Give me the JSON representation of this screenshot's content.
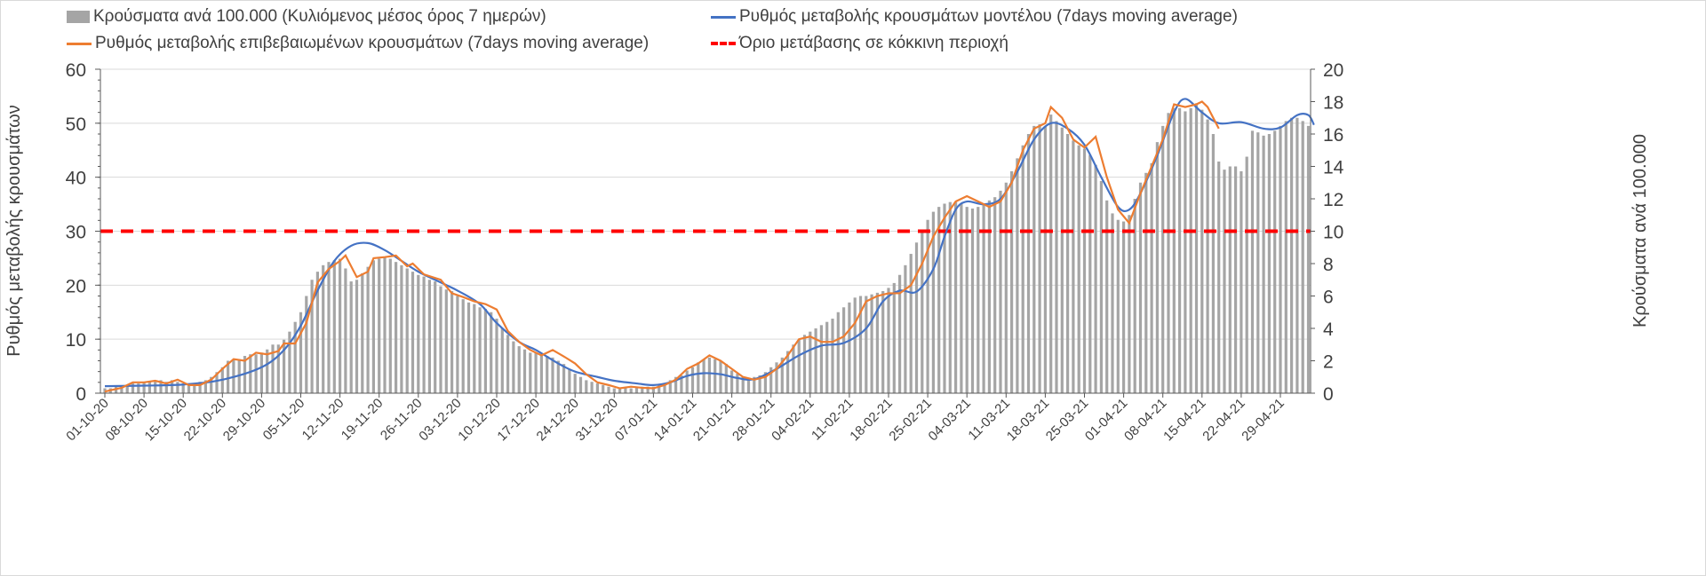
{
  "chart_data": {
    "type": "bar+line",
    "legend": {
      "bars": "Κρούσματα ανά 100.000 (Κυλιόμενος μέσος όρος 7 ημερών)",
      "model": "Ρυθμός μεταβολής κρουσμάτων μοντέλου (7days moving average)",
      "confirmed": "Ρυθμός μεταβολής επιβεβαιωμένων κρουσμάτων (7days moving average)",
      "threshold": "Όριο μετάβασης σε κόκκινη περιοχή"
    },
    "ylabel_left": "Ρυθμός μεταβολής κρουσμάτων",
    "ylabel_right": "Κρούσματα ανά 100.000",
    "ylim_left": [
      0,
      60
    ],
    "ylim_right": [
      0,
      20
    ],
    "yticks_left": [
      "0",
      "10",
      "20",
      "30",
      "40",
      "50",
      "60"
    ],
    "yticks_right": [
      "0",
      "2",
      "4",
      "6",
      "8",
      "10",
      "12",
      "14",
      "16",
      "18",
      "20"
    ],
    "x_start_date": "01-10-20",
    "x_ticks": [
      "01-10-20",
      "08-10-20",
      "15-10-20",
      "22-10-20",
      "29-10-20",
      "05-11-20",
      "12-11-20",
      "19-11-20",
      "26-11-20",
      "03-12-20",
      "10-12-20",
      "17-12-20",
      "24-12-20",
      "31-12-20",
      "07-01-21",
      "14-01-21",
      "21-01-21",
      "28-01-21",
      "04-02-21",
      "11-02-21",
      "18-02-21",
      "25-02-21",
      "04-03-21",
      "11-03-21",
      "18-03-21",
      "25-03-21",
      "01-04-21",
      "08-04-21",
      "15-04-21",
      "22-04-21",
      "29-04-21"
    ],
    "threshold_left": 30,
    "grid": "horizontal",
    "legend_position": "top",
    "colors": {
      "bars": "#a5a5a5",
      "model": "#4472c4",
      "confirmed": "#ed7d31",
      "threshold": "#ff0000"
    },
    "bars_daily_right_axis": [
      0.3,
      0.3,
      0.4,
      0.4,
      0.5,
      0.6,
      0.6,
      0.7,
      0.7,
      0.7,
      0.8,
      0.7,
      0.8,
      0.7,
      0.6,
      0.6,
      0.6,
      0.7,
      0.8,
      1.0,
      1.3,
      1.6,
      2.0,
      2.1,
      2.1,
      2.3,
      2.4,
      2.4,
      2.5,
      2.7,
      3.0,
      3.0,
      3.3,
      3.8,
      4.4,
      5.0,
      6.0,
      7.0,
      7.5,
      7.9,
      8.1,
      8.2,
      8.3,
      7.7,
      6.9,
      7.0,
      7.4,
      7.8,
      8.2,
      8.3,
      8.4,
      8.3,
      8.1,
      7.9,
      7.7,
      7.5,
      7.3,
      7.2,
      7.0,
      6.9,
      6.6,
      6.4,
      6.3,
      6.0,
      5.8,
      5.6,
      5.5,
      5.3,
      5.2,
      5.0,
      4.6,
      4.0,
      3.6,
      3.2,
      2.9,
      2.7,
      2.5,
      2.5,
      2.4,
      2.3,
      2.2,
      2.0,
      1.8,
      1.5,
      1.2,
      1.0,
      0.8,
      0.7,
      0.6,
      0.5,
      0.4,
      0.3,
      0.3,
      0.3,
      0.3,
      0.4,
      0.4,
      0.4,
      0.4,
      0.5,
      0.6,
      0.8,
      1.0,
      1.1,
      1.4,
      1.6,
      1.9,
      2.1,
      2.2,
      2.1,
      2.0,
      1.8,
      1.4,
      1.2,
      1.0,
      0.9,
      1.0,
      1.1,
      1.3,
      1.6,
      1.9,
      2.2,
      2.6,
      3.0,
      3.3,
      3.6,
      3.8,
      4.0,
      4.2,
      4.4,
      4.6,
      5.0,
      5.3,
      5.6,
      5.9,
      6.0,
      6.0,
      6.1,
      6.2,
      6.3,
      6.5,
      6.8,
      7.3,
      7.9,
      8.6,
      9.3,
      10.0,
      10.7,
      11.2,
      11.5,
      11.7,
      11.8,
      11.8,
      11.7,
      11.5,
      11.4,
      11.5,
      11.7,
      11.9,
      12.1,
      12.5,
      13.0,
      13.7,
      14.5,
      15.3,
      16.0,
      16.5,
      16.6,
      16.5,
      17.2,
      16.8,
      16.4,
      16.0,
      15.6,
      15.3,
      15.1,
      14.7,
      14.1,
      13.1,
      11.9,
      11.1,
      10.7,
      10.6,
      11.0,
      12.0,
      13.0,
      13.6,
      14.2,
      15.5,
      16.5,
      17.3,
      17.6,
      17.6,
      17.4,
      17.6,
      17.9,
      17.5,
      16.9,
      16.0,
      14.3,
      13.8,
      14.0,
      14.0,
      13.7,
      14.6,
      16.2,
      16.1,
      15.9,
      16.0,
      16.2,
      16.5,
      16.8,
      17.0,
      17.0,
      16.8,
      16.5
    ],
    "model_points_day_value": [
      [
        0,
        1.3
      ],
      [
        7,
        1.4
      ],
      [
        14,
        1.6
      ],
      [
        21,
        2.5
      ],
      [
        28,
        4.8
      ],
      [
        32,
        8
      ],
      [
        35,
        12.5
      ],
      [
        38,
        19
      ],
      [
        41,
        24.5
      ],
      [
        44,
        27.3
      ],
      [
        47,
        27.8
      ],
      [
        50,
        26.5
      ],
      [
        53,
        24.5
      ],
      [
        56,
        22.5
      ],
      [
        60,
        20.5
      ],
      [
        63,
        19
      ],
      [
        67,
        16.5
      ],
      [
        70,
        13
      ],
      [
        74,
        9.5
      ],
      [
        77,
        8
      ],
      [
        81,
        5.5
      ],
      [
        84,
        4
      ],
      [
        88,
        3
      ],
      [
        91,
        2.3
      ],
      [
        95,
        1.8
      ],
      [
        98,
        1.5
      ],
      [
        101,
        2
      ],
      [
        104,
        3.2
      ],
      [
        107,
        3.7
      ],
      [
        110,
        3.5
      ],
      [
        113,
        2.8
      ],
      [
        116,
        2.6
      ],
      [
        120,
        4.5
      ],
      [
        124,
        7
      ],
      [
        128,
        8.8
      ],
      [
        132,
        9.3
      ],
      [
        136,
        12
      ],
      [
        139,
        17
      ],
      [
        142,
        19
      ],
      [
        145,
        18.8
      ],
      [
        148,
        23
      ],
      [
        150,
        29
      ],
      [
        152,
        34
      ],
      [
        154,
        35.5
      ],
      [
        157,
        35
      ],
      [
        160,
        36
      ],
      [
        163,
        41
      ],
      [
        166,
        47
      ],
      [
        169,
        50
      ],
      [
        172,
        49
      ],
      [
        175,
        46
      ],
      [
        178,
        40
      ],
      [
        181,
        34.5
      ],
      [
        183,
        34
      ],
      [
        185,
        37
      ],
      [
        188,
        44
      ],
      [
        191,
        52
      ],
      [
        193,
        54.5
      ],
      [
        196,
        52
      ],
      [
        199,
        50
      ],
      [
        203,
        50.2
      ],
      [
        207,
        49
      ],
      [
        210,
        49.2
      ],
      [
        213,
        51.5
      ],
      [
        215,
        51.5
      ],
      [
        216,
        49.7
      ]
    ],
    "confirmed_points_day_value": [
      [
        0,
        0.3
      ],
      [
        3,
        1
      ],
      [
        5,
        2
      ],
      [
        7,
        2
      ],
      [
        9,
        2.3
      ],
      [
        11,
        1.8
      ],
      [
        13,
        2.5
      ],
      [
        15,
        1.5
      ],
      [
        17,
        1.5
      ],
      [
        19,
        2.5
      ],
      [
        21,
        4.5
      ],
      [
        23,
        6.3
      ],
      [
        25,
        6
      ],
      [
        27,
        7.5
      ],
      [
        29,
        7.2
      ],
      [
        31,
        7.8
      ],
      [
        32,
        9.2
      ],
      [
        34,
        9.2
      ],
      [
        36,
        13
      ],
      [
        38,
        20.5
      ],
      [
        40,
        23
      ],
      [
        42,
        24.5
      ],
      [
        43,
        25.5
      ],
      [
        45,
        21.5
      ],
      [
        47,
        22.5
      ],
      [
        48,
        25
      ],
      [
        50,
        25.2
      ],
      [
        52,
        25.5
      ],
      [
        54,
        23.5
      ],
      [
        55,
        24
      ],
      [
        57,
        22
      ],
      [
        60,
        21
      ],
      [
        62,
        18.5
      ],
      [
        64,
        17.8
      ],
      [
        66,
        17
      ],
      [
        68,
        16.5
      ],
      [
        70,
        15.5
      ],
      [
        72,
        11.5
      ],
      [
        74,
        9.5
      ],
      [
        76,
        8
      ],
      [
        78,
        7
      ],
      [
        80,
        8
      ],
      [
        82,
        6.8
      ],
      [
        84,
        5.5
      ],
      [
        86,
        3.5
      ],
      [
        88,
        2
      ],
      [
        90,
        1.5
      ],
      [
        92,
        0.9
      ],
      [
        94,
        1.2
      ],
      [
        96,
        1
      ],
      [
        98,
        0.9
      ],
      [
        100,
        1.5
      ],
      [
        102,
        2.5
      ],
      [
        104,
        4.5
      ],
      [
        106,
        5.5
      ],
      [
        108,
        7
      ],
      [
        110,
        6
      ],
      [
        112,
        4.5
      ],
      [
        114,
        3
      ],
      [
        116,
        2.5
      ],
      [
        118,
        3
      ],
      [
        120,
        4.5
      ],
      [
        122,
        7
      ],
      [
        124,
        10
      ],
      [
        126,
        10.5
      ],
      [
        128,
        9.5
      ],
      [
        130,
        9.5
      ],
      [
        132,
        10.5
      ],
      [
        134,
        13
      ],
      [
        136,
        17
      ],
      [
        138,
        18
      ],
      [
        140,
        18.5
      ],
      [
        142,
        18.5
      ],
      [
        144,
        20
      ],
      [
        146,
        24
      ],
      [
        148,
        29
      ],
      [
        150,
        32.5
      ],
      [
        152,
        35.5
      ],
      [
        154,
        36.5
      ],
      [
        156,
        35.5
      ],
      [
        158,
        34.5
      ],
      [
        160,
        35.5
      ],
      [
        162,
        39
      ],
      [
        164,
        45
      ],
      [
        166,
        49
      ],
      [
        168,
        50
      ],
      [
        169,
        53
      ],
      [
        171,
        51
      ],
      [
        173,
        47
      ],
      [
        175,
        45.5
      ],
      [
        177,
        47.5
      ],
      [
        179,
        40
      ],
      [
        181,
        34
      ],
      [
        183,
        31.5
      ],
      [
        185,
        37
      ],
      [
        187,
        42
      ],
      [
        189,
        47
      ],
      [
        191,
        53.5
      ],
      [
        193,
        53
      ],
      [
        195,
        53.5
      ],
      [
        196,
        54
      ],
      [
        197,
        53
      ],
      [
        199,
        49
      ]
    ]
  }
}
